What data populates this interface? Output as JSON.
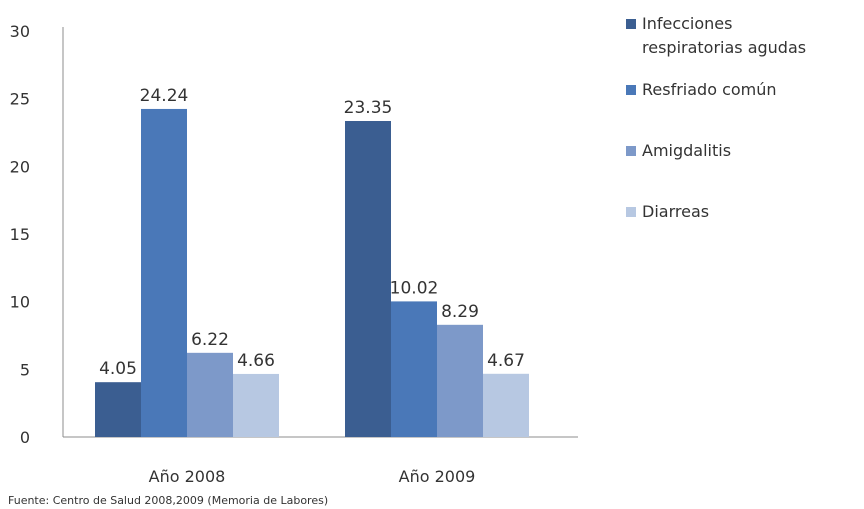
{
  "chart_data": {
    "type": "bar",
    "categories": [
      "Año 2008",
      "Año 2009"
    ],
    "series": [
      {
        "name": "Infecciones respiratorias agudas",
        "values": [
          4.05,
          23.35
        ],
        "color": "#3b5e91"
      },
      {
        "name": "Resfriado común",
        "values": [
          24.24,
          10.02
        ],
        "color": "#4a78b8"
      },
      {
        "name": "Amigdalitis",
        "values": [
          6.22,
          8.29
        ],
        "color": "#7d99c9"
      },
      {
        "name": "Diarreas",
        "values": [
          4.66,
          4.67
        ],
        "color": "#b7c8e2"
      }
    ],
    "data_labels": [
      [
        "4.05",
        "23.35"
      ],
      [
        "24.24",
        "10.02"
      ],
      [
        "6.22",
        "8.29"
      ],
      [
        "4.66",
        "4.67"
      ]
    ],
    "legend_lines": [
      [
        "Infecciones",
        "respiratorias agudas"
      ],
      [
        "Resfriado común"
      ],
      [
        "Amigdalitis"
      ],
      [
        "Diarreas"
      ]
    ],
    "yticks": [
      0,
      5,
      10,
      15,
      20,
      25,
      30
    ],
    "ylim": [
      0,
      30
    ],
    "grid": false,
    "legend_position": "right",
    "title": "",
    "xlabel": "",
    "ylabel": ""
  },
  "source_note": "Fuente: Centro de Salud 2008,2009 (Memoria de Labores)"
}
